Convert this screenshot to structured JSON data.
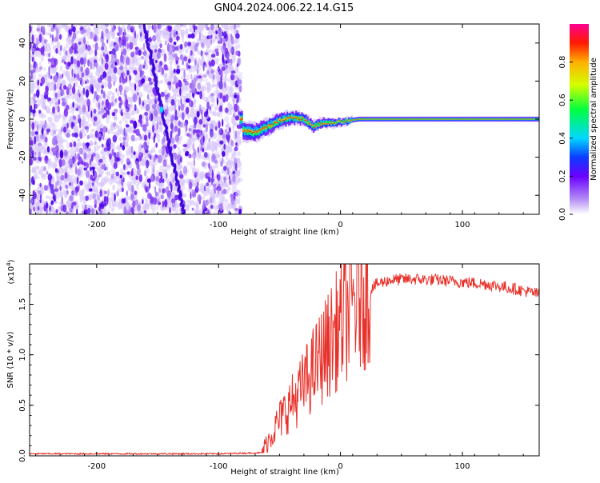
{
  "title": "GN04.2024.006.22.14.G15",
  "colors": {
    "axis": "#000000",
    "snr_line": "#e8312a",
    "scatter_purple": "#7a2cf0",
    "scatter_light": "#d6c4fb"
  },
  "chart_data": [
    {
      "type": "heatmap",
      "title": "GN04.2024.006.22.14.G15",
      "xlabel": "Height of straight line (km)",
      "ylabel": "Frequency (Hz)",
      "xlim": [
        -255,
        163
      ],
      "ylim": [
        -50,
        50
      ],
      "xticks": [
        -200,
        -100,
        0,
        100
      ],
      "xtick_labels": [
        "-200",
        "-100",
        "0",
        "100"
      ],
      "yticks": [
        -40,
        -20,
        0,
        20,
        40
      ],
      "ytick_labels": [
        "-40",
        "-20",
        "0",
        "20",
        "40"
      ],
      "noise_region_x": [
        -255,
        -82
      ],
      "track": [
        {
          "x": -80,
          "y": -6
        },
        {
          "x": -70,
          "y": -7
        },
        {
          "x": -60,
          "y": -4
        },
        {
          "x": -50,
          "y": -1
        },
        {
          "x": -40,
          "y": 1
        },
        {
          "x": -30,
          "y": 0
        },
        {
          "x": -22,
          "y": -4
        },
        {
          "x": -15,
          "y": -2
        },
        {
          "x": -5,
          "y": -2
        },
        {
          "x": 5,
          "y": -1
        },
        {
          "x": 15,
          "y": 0
        },
        {
          "x": 163,
          "y": 0
        }
      ],
      "colorbar": {
        "label": "Normalized spectral amplitude",
        "range": [
          0.0,
          1.0
        ],
        "ticks": [
          0.0,
          0.2,
          0.4,
          0.6,
          0.8
        ],
        "tick_labels": [
          "0.0",
          "0.2",
          "0.4",
          "0.6",
          "0.8"
        ],
        "colormap": "rainbow (white-purple-blue-cyan-green-yellow-red-magenta)"
      },
      "grid": false
    },
    {
      "type": "line",
      "xlabel": "Height of straight line (km)",
      "ylabel": "SNR (10 * v/v)",
      "scale_label": "(x10",
      "scale_exp": "4",
      "scale_close": ")",
      "xlim": [
        -255,
        163
      ],
      "ylim": [
        0.0,
        1.9
      ],
      "xticks": [
        -200,
        -100,
        0,
        100
      ],
      "xtick_labels": [
        "-200",
        "-100",
        "0",
        "100"
      ],
      "yticks": [
        0.0,
        0.5,
        1.0,
        1.5
      ],
      "ytick_labels": [
        "0.0",
        "0.5",
        "1.0",
        "1.5"
      ],
      "series": [
        {
          "color": "#e8312a",
          "points": [
            [
              -255,
              0.02
            ],
            [
              -150,
              0.02
            ],
            [
              -100,
              0.02
            ],
            [
              -65,
              0.03
            ],
            [
              -55,
              0.25
            ],
            [
              -45,
              0.45
            ],
            [
              -35,
              0.6
            ],
            [
              -25,
              0.8
            ],
            [
              -15,
              1.0
            ],
            [
              -5,
              1.2
            ],
            [
              0,
              1.3
            ],
            [
              10,
              1.5
            ],
            [
              20,
              1.62
            ],
            [
              30,
              1.7
            ],
            [
              40,
              1.74
            ],
            [
              60,
              1.75
            ],
            [
              80,
              1.74
            ],
            [
              100,
              1.72
            ],
            [
              120,
              1.7
            ],
            [
              140,
              1.66
            ],
            [
              163,
              1.6
            ]
          ]
        }
      ],
      "grid": false
    }
  ]
}
